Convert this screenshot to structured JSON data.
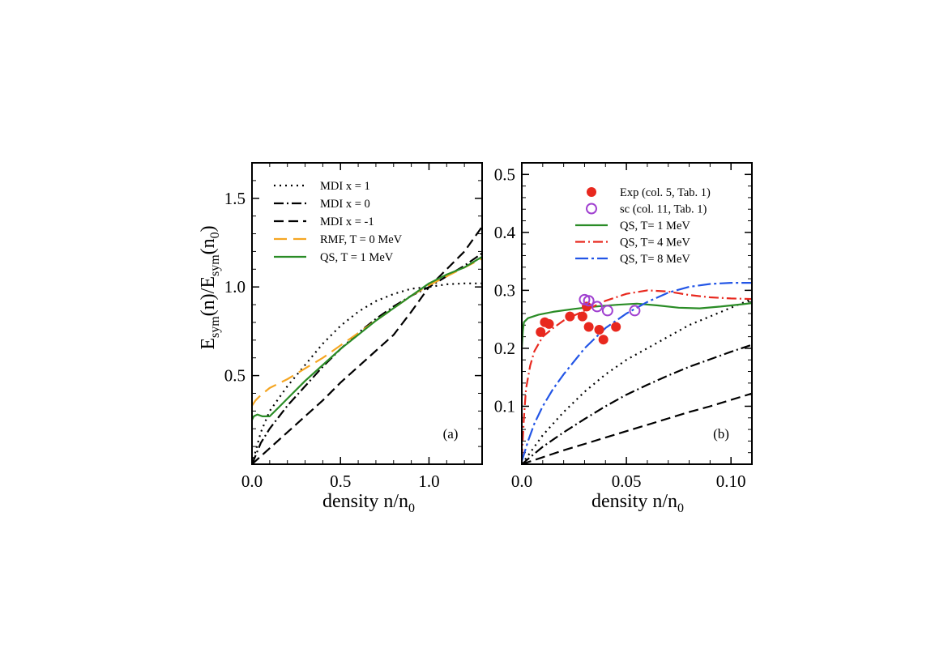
{
  "figure": {
    "ylabel": {
      "main_e1": "E",
      "sub1": "sym",
      "mid": "(n)/E",
      "sub2": "sym",
      "end1": "(n",
      "sub3": "0",
      "end2": ")"
    }
  },
  "chart_data": [
    {
      "type": "line",
      "panel_label": "(a)",
      "xlabel": {
        "pre": "density    n/n",
        "sub": "0"
      },
      "xlim": [
        0,
        1.3
      ],
      "ylim": [
        0,
        1.7
      ],
      "xticks": [
        {
          "value": 0.0,
          "label": "0.0"
        },
        {
          "value": 0.5,
          "label": "0.5"
        },
        {
          "value": 1.0,
          "label": "1.0"
        }
      ],
      "yticks": [
        {
          "value": 0.5,
          "label": "0.5"
        },
        {
          "value": 1.0,
          "label": "1.0"
        },
        {
          "value": 1.5,
          "label": "1.5"
        }
      ],
      "series": [
        {
          "name": "MDI x =  1",
          "color": "#000000",
          "dash": "2,5",
          "points": [
            [
              0,
              0
            ],
            [
              0.05,
              0.18
            ],
            [
              0.1,
              0.3
            ],
            [
              0.2,
              0.44
            ],
            [
              0.3,
              0.56
            ],
            [
              0.4,
              0.68
            ],
            [
              0.5,
              0.78
            ],
            [
              0.6,
              0.86
            ],
            [
              0.7,
              0.92
            ],
            [
              0.8,
              0.96
            ],
            [
              0.9,
              0.99
            ],
            [
              1.0,
              1.0
            ],
            [
              1.1,
              1.015
            ],
            [
              1.2,
              1.02
            ],
            [
              1.3,
              1.02
            ]
          ]
        },
        {
          "name": "MDI x =  0",
          "color": "#000000",
          "dash": "12,4,2,4",
          "points": [
            [
              0,
              0
            ],
            [
              0.05,
              0.12
            ],
            [
              0.1,
              0.2
            ],
            [
              0.2,
              0.33
            ],
            [
              0.3,
              0.44
            ],
            [
              0.4,
              0.55
            ],
            [
              0.5,
              0.65
            ],
            [
              0.6,
              0.74
            ],
            [
              0.7,
              0.82
            ],
            [
              0.8,
              0.89
            ],
            [
              0.9,
              0.95
            ],
            [
              1.0,
              1.0
            ],
            [
              1.1,
              1.06
            ],
            [
              1.2,
              1.12
            ],
            [
              1.3,
              1.19
            ]
          ]
        },
        {
          "name": "MDI x = -1",
          "color": "#000000",
          "dash": "12,6",
          "points": [
            [
              0,
              0
            ],
            [
              0.1,
              0.09
            ],
            [
              0.2,
              0.18
            ],
            [
              0.3,
              0.27
            ],
            [
              0.4,
              0.36
            ],
            [
              0.5,
              0.46
            ],
            [
              0.6,
              0.55
            ],
            [
              0.7,
              0.64
            ],
            [
              0.8,
              0.73
            ],
            [
              0.9,
              0.86
            ],
            [
              1.0,
              1.0
            ],
            [
              1.1,
              1.1
            ],
            [
              1.2,
              1.2
            ],
            [
              1.3,
              1.34
            ]
          ]
        },
        {
          "name": "RMF, T = 0 MeV",
          "color": "#f5a623",
          "dash": "16,8",
          "points": [
            [
              0,
              0.33
            ],
            [
              0.02,
              0.36
            ],
            [
              0.05,
              0.39
            ],
            [
              0.1,
              0.43
            ],
            [
              0.2,
              0.48
            ],
            [
              0.3,
              0.54
            ],
            [
              0.4,
              0.6
            ],
            [
              0.5,
              0.67
            ],
            [
              0.6,
              0.74
            ],
            [
              0.7,
              0.81
            ],
            [
              0.8,
              0.88
            ],
            [
              0.9,
              0.95
            ],
            [
              1.0,
              1.01
            ],
            [
              1.1,
              1.06
            ],
            [
              1.2,
              1.11
            ],
            [
              1.3,
              1.16
            ]
          ]
        },
        {
          "name": "QS, T = 1 MeV",
          "color": "#2a8c26",
          "dash": "",
          "points": [
            [
              0,
              0.25
            ],
            [
              0.01,
              0.27
            ],
            [
              0.03,
              0.28
            ],
            [
              0.06,
              0.27
            ],
            [
              0.1,
              0.27
            ],
            [
              0.15,
              0.32
            ],
            [
              0.2,
              0.37
            ],
            [
              0.3,
              0.47
            ],
            [
              0.4,
              0.56
            ],
            [
              0.5,
              0.65
            ],
            [
              0.6,
              0.73
            ],
            [
              0.7,
              0.81
            ],
            [
              0.8,
              0.88
            ],
            [
              0.9,
              0.95
            ],
            [
              1.0,
              1.02
            ],
            [
              1.1,
              1.07
            ],
            [
              1.2,
              1.11
            ],
            [
              1.3,
              1.17
            ]
          ]
        }
      ]
    },
    {
      "type": "line",
      "panel_label": "(b)",
      "xlabel": {
        "pre": "density    n/n",
        "sub": "0"
      },
      "xlim": [
        0,
        0.11
      ],
      "ylim": [
        0,
        0.52
      ],
      "xticks": [
        {
          "value": 0.0,
          "label": "0.0"
        },
        {
          "value": 0.05,
          "label": "0.05"
        },
        {
          "value": 0.1,
          "label": "0.10"
        }
      ],
      "yticks": [
        {
          "value": 0.1,
          "label": "0.1"
        },
        {
          "value": 0.2,
          "label": "0.2"
        },
        {
          "value": 0.3,
          "label": "0.3"
        },
        {
          "value": 0.4,
          "label": "0.4"
        },
        {
          "value": 0.5,
          "label": "0.5"
        }
      ],
      "series": [
        {
          "name": "MDI x =  1",
          "color": "#000000",
          "dash": "2,5",
          "in_legend": false,
          "points": [
            [
              0,
              0
            ],
            [
              0.01,
              0.05
            ],
            [
              0.02,
              0.09
            ],
            [
              0.03,
              0.125
            ],
            [
              0.04,
              0.155
            ],
            [
              0.05,
              0.18
            ],
            [
              0.06,
              0.2
            ],
            [
              0.07,
              0.22
            ],
            [
              0.08,
              0.24
            ],
            [
              0.09,
              0.255
            ],
            [
              0.1,
              0.27
            ],
            [
              0.11,
              0.285
            ]
          ]
        },
        {
          "name": "MDI x =  0",
          "color": "#000000",
          "dash": "12,4,2,4",
          "in_legend": false,
          "points": [
            [
              0,
              0
            ],
            [
              0.01,
              0.03
            ],
            [
              0.02,
              0.055
            ],
            [
              0.03,
              0.078
            ],
            [
              0.04,
              0.1
            ],
            [
              0.05,
              0.12
            ],
            [
              0.06,
              0.137
            ],
            [
              0.07,
              0.153
            ],
            [
              0.08,
              0.168
            ],
            [
              0.09,
              0.181
            ],
            [
              0.1,
              0.194
            ],
            [
              0.11,
              0.206
            ]
          ]
        },
        {
          "name": "MDI x = -1",
          "color": "#000000",
          "dash": "12,6",
          "in_legend": false,
          "points": [
            [
              0,
              0
            ],
            [
              0.01,
              0.012
            ],
            [
              0.02,
              0.024
            ],
            [
              0.03,
              0.035
            ],
            [
              0.04,
              0.046
            ],
            [
              0.05,
              0.057
            ],
            [
              0.06,
              0.068
            ],
            [
              0.07,
              0.079
            ],
            [
              0.08,
              0.09
            ],
            [
              0.09,
              0.1
            ],
            [
              0.1,
              0.111
            ],
            [
              0.11,
              0.122
            ]
          ]
        },
        {
          "name": "QS, T= 1 MeV",
          "color": "#2a8c26",
          "dash": "",
          "in_legend": true,
          "points": [
            [
              0,
              0.2
            ],
            [
              0.0005,
              0.23
            ],
            [
              0.001,
              0.245
            ],
            [
              0.003,
              0.252
            ],
            [
              0.008,
              0.258
            ],
            [
              0.015,
              0.263
            ],
            [
              0.025,
              0.268
            ],
            [
              0.035,
              0.272
            ],
            [
              0.045,
              0.275
            ],
            [
              0.055,
              0.277
            ],
            [
              0.065,
              0.274
            ],
            [
              0.075,
              0.27
            ],
            [
              0.085,
              0.269
            ],
            [
              0.095,
              0.272
            ],
            [
              0.105,
              0.276
            ],
            [
              0.11,
              0.278
            ]
          ]
        },
        {
          "name": "QS, T= 4 MeV",
          "color": "#e8281e",
          "dash": "12,4,2,4",
          "in_legend": true,
          "points": [
            [
              0,
              0.01
            ],
            [
              0.001,
              0.08
            ],
            [
              0.002,
              0.13
            ],
            [
              0.004,
              0.17
            ],
            [
              0.006,
              0.195
            ],
            [
              0.01,
              0.22
            ],
            [
              0.015,
              0.235
            ],
            [
              0.02,
              0.248
            ],
            [
              0.03,
              0.265
            ],
            [
              0.04,
              0.282
            ],
            [
              0.05,
              0.294
            ],
            [
              0.06,
              0.3
            ],
            [
              0.07,
              0.298
            ],
            [
              0.08,
              0.292
            ],
            [
              0.09,
              0.288
            ],
            [
              0.1,
              0.286
            ],
            [
              0.11,
              0.285
            ]
          ]
        },
        {
          "name": "QS, T= 8 MeV",
          "color": "#2255e6",
          "dash": "16,4,3,4",
          "in_legend": true,
          "points": [
            [
              0,
              0.005
            ],
            [
              0.003,
              0.04
            ],
            [
              0.006,
              0.07
            ],
            [
              0.01,
              0.1
            ],
            [
              0.015,
              0.13
            ],
            [
              0.02,
              0.155
            ],
            [
              0.03,
              0.2
            ],
            [
              0.04,
              0.235
            ],
            [
              0.05,
              0.26
            ],
            [
              0.06,
              0.28
            ],
            [
              0.07,
              0.296
            ],
            [
              0.08,
              0.306
            ],
            [
              0.09,
              0.311
            ],
            [
              0.1,
              0.313
            ],
            [
              0.11,
              0.313
            ]
          ]
        }
      ],
      "scatter": [
        {
          "name": "Exp (col. 5, Tab. 1)",
          "marker": "filled-circle",
          "color": "#e8281e",
          "points": [
            [
              0.009,
              0.228
            ],
            [
              0.011,
              0.245
            ],
            [
              0.013,
              0.242
            ],
            [
              0.023,
              0.255
            ],
            [
              0.029,
              0.255
            ],
            [
              0.031,
              0.272
            ],
            [
              0.032,
              0.237
            ],
            [
              0.037,
              0.232
            ],
            [
              0.039,
              0.215
            ],
            [
              0.045,
              0.237
            ]
          ]
        },
        {
          "name": "sc (col. 11, Tab. 1)",
          "marker": "open-circle",
          "color": "#a040d0",
          "points": [
            [
              0.03,
              0.284
            ],
            [
              0.032,
              0.282
            ],
            [
              0.036,
              0.272
            ],
            [
              0.041,
              0.265
            ],
            [
              0.054,
              0.265
            ]
          ]
        }
      ]
    }
  ]
}
